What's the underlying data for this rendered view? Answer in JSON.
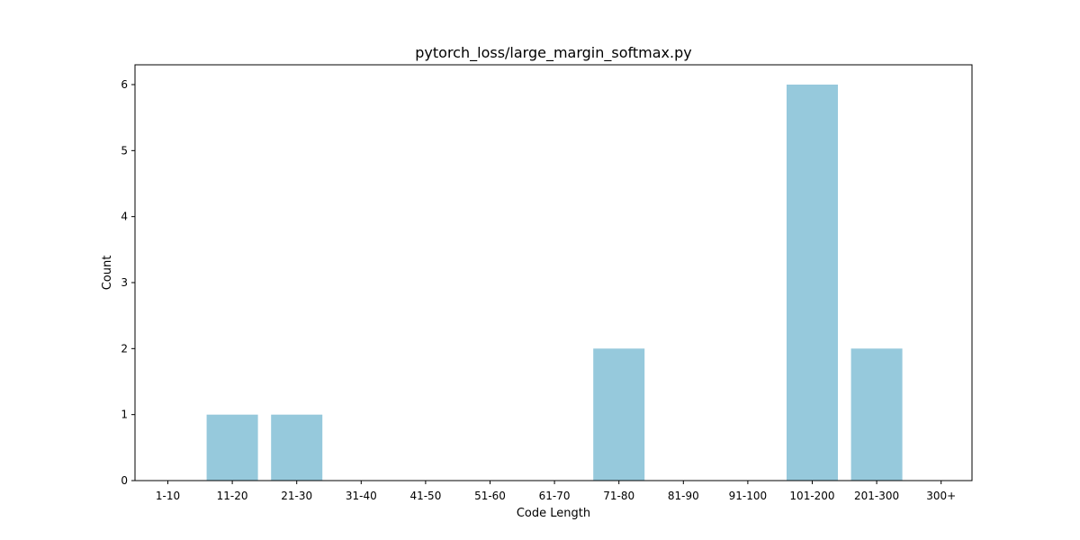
{
  "chart_data": {
    "type": "bar",
    "title": "pytorch_loss/large_margin_softmax.py",
    "xlabel": "Code Length",
    "ylabel": "Count",
    "categories": [
      "1-10",
      "11-20",
      "21-30",
      "31-40",
      "41-50",
      "51-60",
      "61-70",
      "71-80",
      "81-90",
      "91-100",
      "101-200",
      "201-300",
      "300+"
    ],
    "values": [
      0,
      1,
      1,
      0,
      0,
      0,
      0,
      2,
      0,
      0,
      6,
      2,
      0
    ],
    "yticks": [
      "0",
      "1",
      "2",
      "3",
      "4",
      "5",
      "6"
    ],
    "ylim": [
      0,
      6.3
    ],
    "grid": false,
    "bar_color": "#96c9dc"
  }
}
